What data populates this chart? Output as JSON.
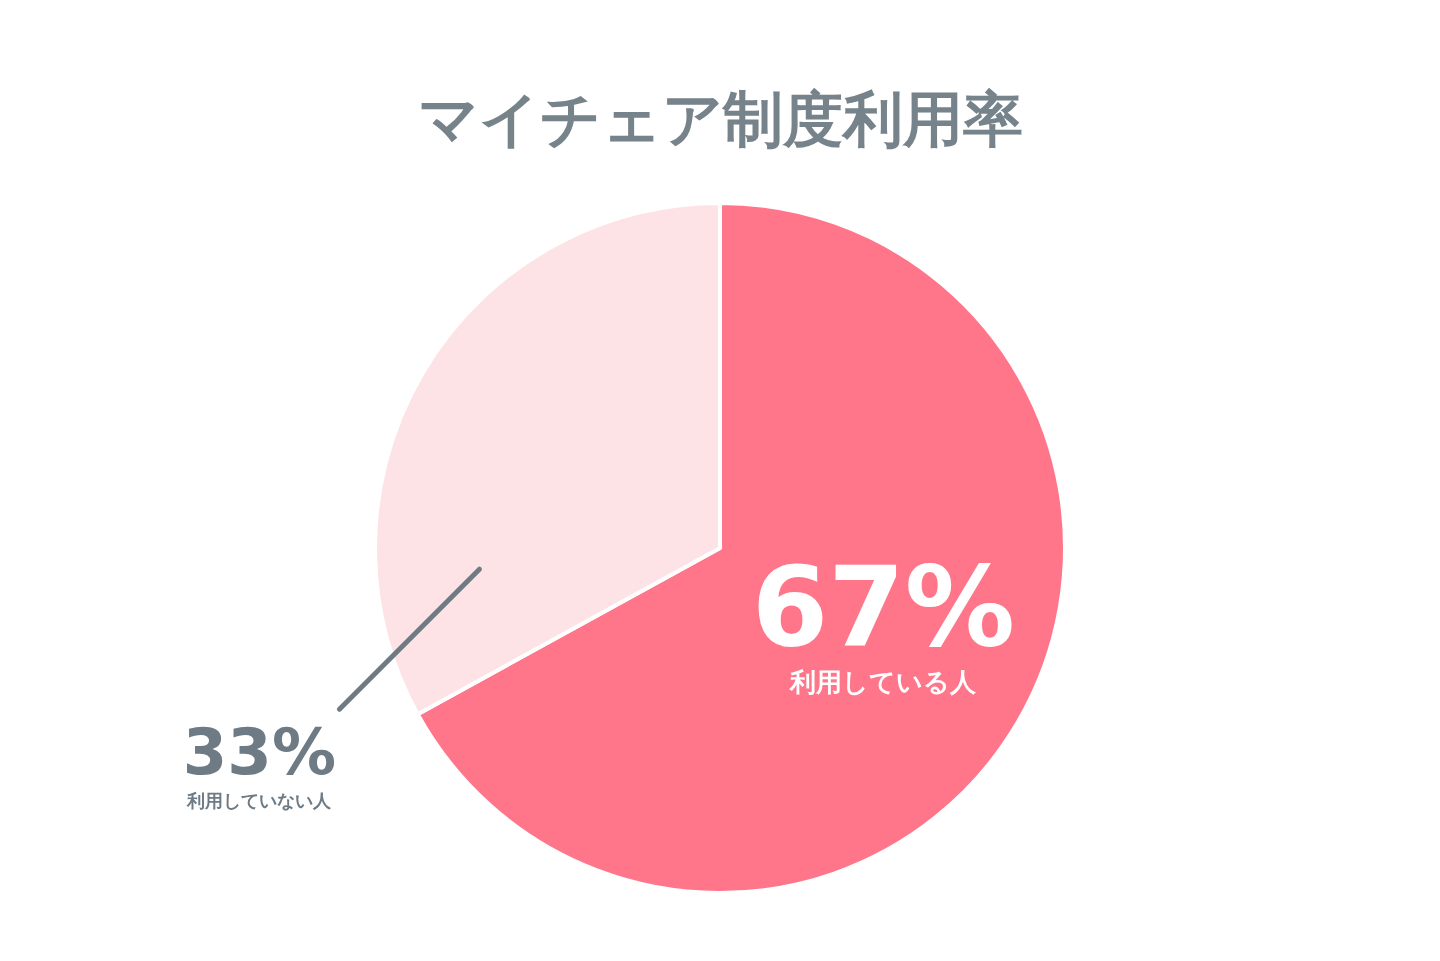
{
  "chart_data": {
    "type": "pie",
    "title": "マイチェア制度利用率",
    "categories": [
      "利用している人",
      "利用していない人"
    ],
    "values": [
      67,
      33
    ],
    "colors": [
      "#ff7589",
      "#fde3e5"
    ],
    "value_labels": [
      "67%",
      "33%"
    ]
  }
}
